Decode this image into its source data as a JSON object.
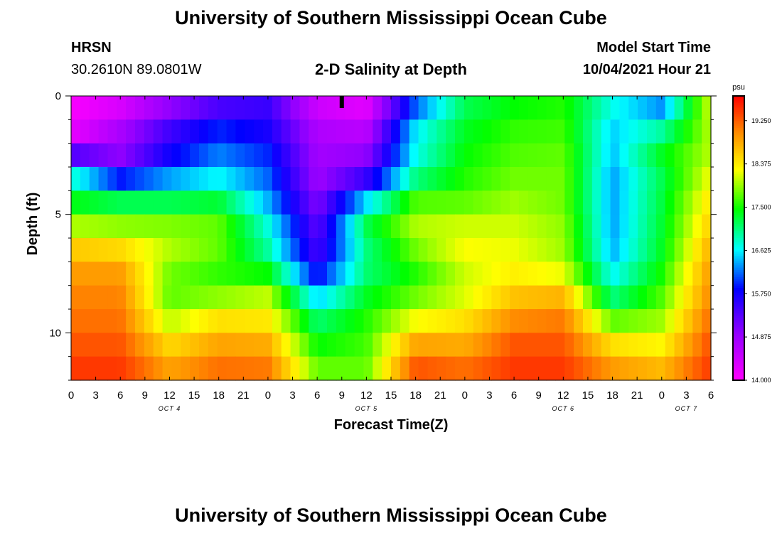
{
  "header": {
    "title_top": "University of Southern Mississippi Ocean Cube",
    "title_bottom": "University of Southern Mississippi Ocean Cube",
    "station": "HRSN",
    "coords": "30.2610N  89.0801W",
    "plot_title": "2-D Salinity at Depth",
    "model_start_label": "Model Start Time",
    "model_start_value": "10/04/2021 Hour 21"
  },
  "chart_data": {
    "type": "heatmap",
    "title": "2-D Salinity at Depth",
    "xlabel": "Forecast Time(Z)",
    "ylabel": "Depth (ft)",
    "colorbar_unit": "psu",
    "colorbar_ticks": [
      "14.000",
      "14.875",
      "15.750",
      "16.625",
      "17.500",
      "18.375",
      "19.250"
    ],
    "colorbar_range": [
      14.0,
      19.75
    ],
    "x_ticks": [
      "0",
      "3",
      "6",
      "9",
      "12",
      "15",
      "18",
      "21",
      "0",
      "3",
      "6",
      "9",
      "12",
      "15",
      "18",
      "21",
      "0",
      "3",
      "6",
      "9",
      "12",
      "15",
      "18",
      "21",
      "0",
      "3",
      "6"
    ],
    "day_labels": [
      {
        "label": "OCT 4",
        "tick_index": 4
      },
      {
        "label": "OCT 5",
        "tick_index": 12
      },
      {
        "label": "OCT 6",
        "tick_index": 20
      },
      {
        "label": "OCT 7",
        "tick_index": 25
      }
    ],
    "y_ticks": [
      "0",
      "5",
      "10"
    ],
    "y_tick_values": [
      0,
      5,
      10
    ],
    "depth_range_ft": [
      0,
      12
    ],
    "current_time_marker_hours": 33,
    "hours": [
      0,
      6,
      12,
      18,
      24,
      30,
      36,
      42,
      48,
      54,
      60,
      66,
      72,
      78
    ],
    "depths_ft": [
      0,
      1,
      2,
      3,
      4,
      5,
      6,
      7,
      8,
      9,
      10,
      11,
      12
    ],
    "salinity_psu": [
      [
        14.0,
        14.1,
        14.6,
        15.1,
        15.4,
        14.3,
        14.0,
        15.9,
        17.1,
        17.4,
        17.5,
        16.9,
        16.2,
        18.2
      ],
      [
        14.1,
        14.6,
        15.3,
        15.7,
        15.6,
        14.6,
        14.5,
        16.4,
        17.3,
        17.5,
        17.6,
        16.5,
        16.4,
        18.1
      ],
      [
        14.3,
        14.9,
        15.6,
        16.2,
        15.8,
        14.8,
        14.7,
        16.8,
        17.4,
        17.7,
        17.7,
        16.5,
        17.5,
        18.0
      ],
      [
        16.4,
        15.0,
        15.9,
        16.3,
        16.1,
        14.8,
        15.2,
        16.6,
        17.5,
        17.7,
        17.8,
        16.4,
        17.2,
        18.1
      ],
      [
        17.2,
        16.8,
        16.8,
        17.0,
        16.2,
        14.9,
        15.8,
        17.5,
        17.6,
        17.9,
        17.8,
        16.3,
        17.2,
        18.4
      ],
      [
        17.6,
        17.6,
        17.6,
        17.6,
        16.6,
        15.2,
        17.3,
        17.9,
        17.9,
        18.0,
        17.8,
        16.4,
        17.3,
        18.5
      ],
      [
        18.4,
        18.2,
        18.1,
        17.9,
        16.9,
        15.3,
        17.1,
        18.1,
        18.3,
        18.2,
        18.0,
        16.3,
        17.3,
        18.7
      ],
      [
        18.8,
        18.8,
        17.9,
        17.6,
        17.0,
        15.5,
        17.0,
        17.5,
        18.2,
        18.2,
        17.9,
        16.5,
        17.4,
        18.9
      ],
      [
        19.0,
        19.0,
        17.7,
        17.6,
        17.9,
        16.1,
        17.2,
        17.6,
        18.0,
        18.5,
        18.5,
        16.8,
        17.6,
        19.0
      ],
      [
        19.1,
        19.1,
        17.8,
        18.2,
        18.2,
        16.9,
        17.5,
        18.0,
        18.3,
        18.8,
        19.0,
        17.3,
        17.8,
        19.1
      ],
      [
        19.2,
        19.2,
        18.3,
        18.7,
        18.6,
        17.3,
        17.6,
        18.5,
        18.6,
        19.2,
        19.2,
        18.2,
        18.1,
        19.3
      ],
      [
        19.4,
        19.4,
        18.7,
        19.0,
        19.0,
        17.6,
        17.7,
        19.2,
        19.0,
        19.4,
        19.4,
        18.7,
        18.5,
        19.4
      ],
      [
        19.5,
        19.5,
        19.0,
        19.3,
        19.2,
        17.9,
        17.8,
        19.4,
        19.3,
        19.5,
        19.5,
        19.1,
        18.9,
        19.5
      ]
    ]
  }
}
